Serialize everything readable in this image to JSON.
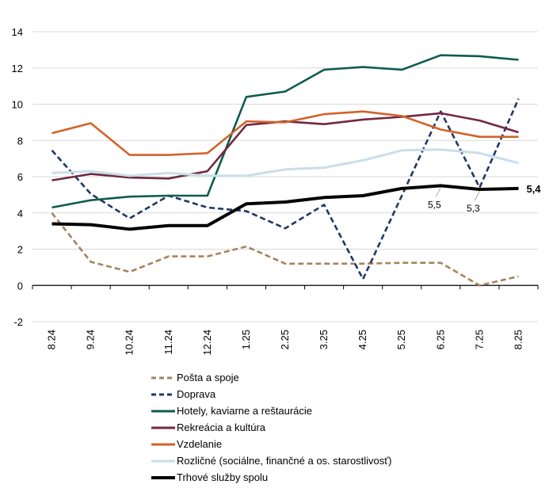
{
  "chart_data": {
    "type": "line",
    "title": "",
    "xlabel": "",
    "ylabel": "",
    "ylim": [
      -2,
      14
    ],
    "yticks": [
      -2,
      0,
      2,
      4,
      6,
      8,
      10,
      12,
      14
    ],
    "ytick_labels": [
      "-2",
      "0",
      "2",
      "4",
      "6",
      "8",
      "10",
      "12",
      "14"
    ],
    "grid": true,
    "legend_position": "bottom",
    "categories": [
      "8.24",
      "9.24",
      "10.24",
      "11.24",
      "12.24",
      "1.25",
      "2.25",
      "3.25",
      "4.25",
      "5.25",
      "6.25",
      "7.25",
      "8.25"
    ],
    "series": [
      {
        "name": "Pošta a spoje",
        "color": "#A7835B",
        "dash": "dashed",
        "weight": "normal",
        "values": [
          4.0,
          1.3,
          0.75,
          1.6,
          1.6,
          2.15,
          1.2,
          1.2,
          1.2,
          1.25,
          1.25,
          0.0,
          0.5
        ]
      },
      {
        "name": "Doprava",
        "color": "#1F3864",
        "dash": "dashed",
        "weight": "normal",
        "values": [
          7.45,
          5.05,
          3.7,
          4.95,
          4.3,
          4.1,
          3.15,
          4.45,
          0.35,
          4.95,
          9.6,
          5.4,
          10.3
        ]
      },
      {
        "name": "Hotely, kaviarne a reštaurácie",
        "color": "#0E5C4E",
        "dash": "solid",
        "weight": "normal",
        "values": [
          4.3,
          4.7,
          4.9,
          4.95,
          4.95,
          10.4,
          10.7,
          11.9,
          12.05,
          11.9,
          12.7,
          12.65,
          12.45
        ]
      },
      {
        "name": "Rekreácia a kultúra",
        "color": "#722840",
        "dash": "solid",
        "weight": "normal",
        "values": [
          5.8,
          6.15,
          5.95,
          5.9,
          6.3,
          8.85,
          9.05,
          8.9,
          9.15,
          9.3,
          9.5,
          9.1,
          8.45
        ]
      },
      {
        "name": "Vzdelanie",
        "color": "#D3622A",
        "dash": "solid",
        "weight": "normal",
        "values": [
          8.4,
          8.95,
          7.2,
          7.2,
          7.3,
          9.05,
          9.0,
          9.45,
          9.6,
          9.35,
          8.6,
          8.2,
          8.2
        ]
      },
      {
        "name": "Rozličné (sociálne, finančné a os. starostlivosť)",
        "color": "#C9DEEA",
        "dash": "solid",
        "weight": "normal",
        "values": [
          6.2,
          6.3,
          6.05,
          6.2,
          6.05,
          6.05,
          6.4,
          6.5,
          6.9,
          7.45,
          7.5,
          7.3,
          6.75
        ]
      },
      {
        "name": "Trhové služby spolu",
        "color": "#000000",
        "dash": "solid",
        "weight": "bold",
        "values": [
          3.4,
          3.35,
          3.1,
          3.3,
          3.3,
          4.5,
          4.6,
          4.85,
          4.95,
          5.35,
          5.5,
          5.3,
          5.35
        ]
      }
    ],
    "annotations": [
      {
        "series": "Trhové služby spolu",
        "category": "6.25",
        "text": "5,5",
        "style": "leader"
      },
      {
        "series": "Trhové služby spolu",
        "category": "7.25",
        "text": "5,3",
        "style": "leader"
      },
      {
        "series": "Trhové služby spolu",
        "category": "8.25",
        "text": "5,4",
        "style": "bold-right"
      }
    ]
  }
}
